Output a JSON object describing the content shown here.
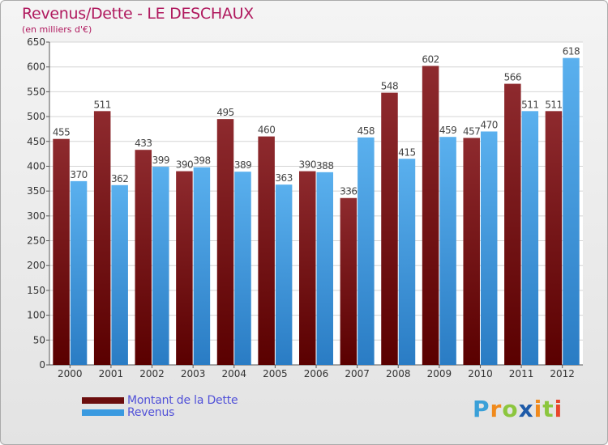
{
  "title": "Revenus/Dette - LE DESCHAUX",
  "subtitle": "(en milliers d'€)",
  "chart_data": {
    "type": "bar",
    "categories": [
      "2000",
      "2001",
      "2002",
      "2003",
      "2004",
      "2005",
      "2006",
      "2007",
      "2008",
      "2009",
      "2010",
      "2011",
      "2012"
    ],
    "series": [
      {
        "name": "Montant de la Dette",
        "color": "#8b1a1a",
        "values": [
          455,
          511,
          433,
          390,
          495,
          460,
          390,
          336,
          548,
          602,
          457,
          566,
          511
        ]
      },
      {
        "name": "Revenus",
        "color": "#4da6e8",
        "values": [
          370,
          362,
          399,
          398,
          389,
          363,
          388,
          458,
          415,
          459,
          470,
          511,
          618
        ]
      }
    ],
    "ylim": [
      0,
      650
    ],
    "yticks": [
      0,
      50,
      100,
      150,
      200,
      250,
      300,
      350,
      400,
      450,
      500,
      550,
      600,
      650
    ],
    "xlabel": "",
    "ylabel": "",
    "grid": true,
    "legend_position": "bottom-left"
  },
  "legend": {
    "items": [
      {
        "label": "Montant de la Dette",
        "color": "#6b0d0d"
      },
      {
        "label": "Revenus",
        "color": "#3a9ae0"
      }
    ]
  },
  "logo": {
    "letters": [
      "P",
      "r",
      "o",
      "x",
      "i",
      "t",
      "i"
    ],
    "colors": [
      "#3aa0d8",
      "#f08a1c",
      "#8cc63e",
      "#1e5aa8",
      "#f08a1c",
      "#8cc63e",
      "#e8452c"
    ]
  }
}
